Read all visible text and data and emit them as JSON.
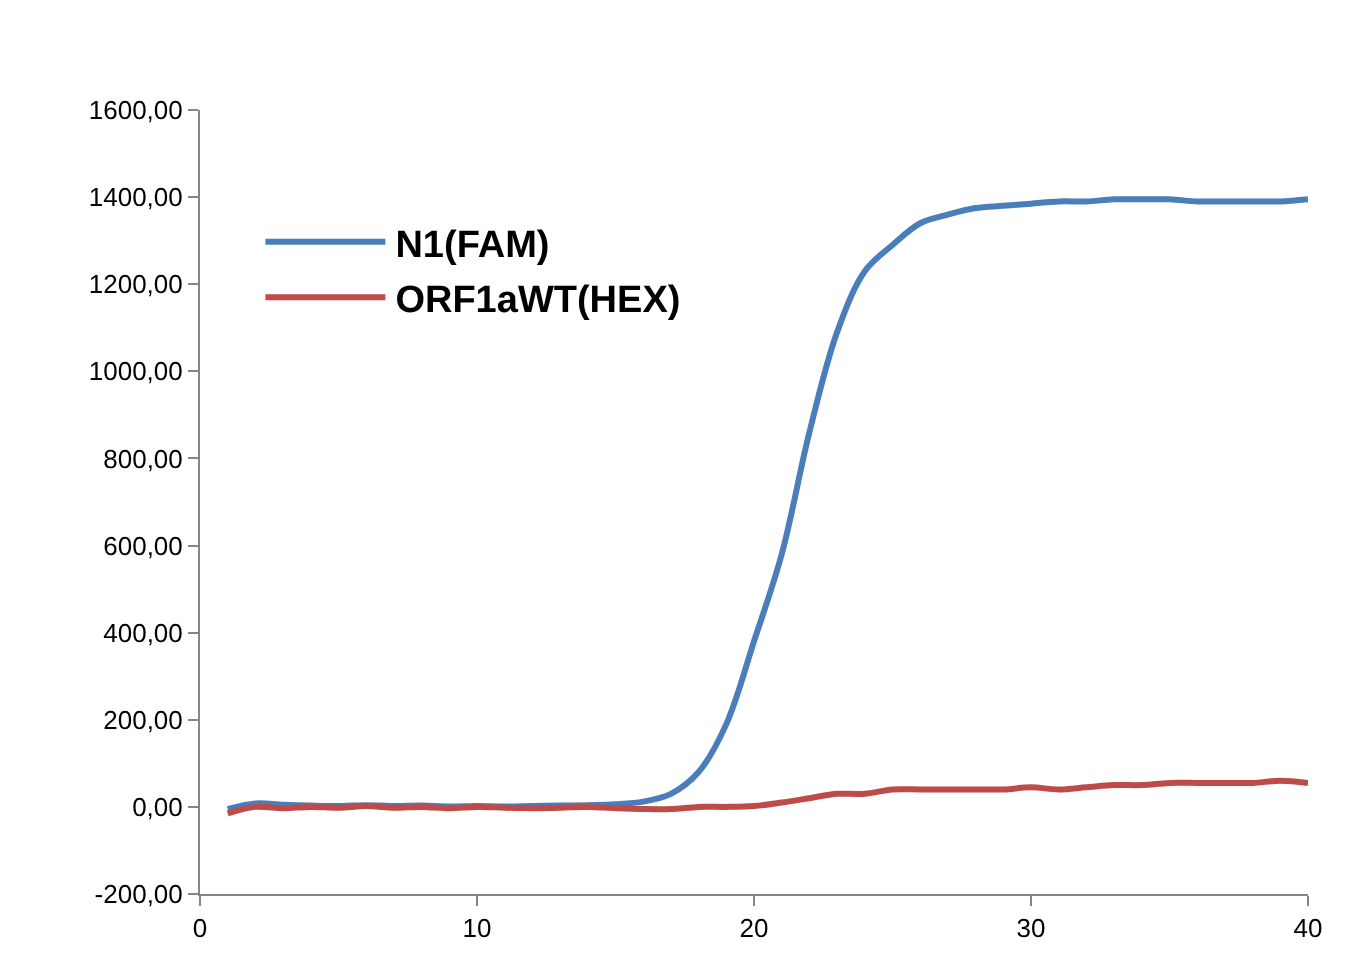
{
  "chart_data": {
    "type": "line",
    "x": [
      1,
      2,
      3,
      4,
      5,
      6,
      7,
      8,
      9,
      10,
      11,
      12,
      13,
      14,
      15,
      16,
      17,
      18,
      19,
      20,
      21,
      22,
      23,
      24,
      25,
      26,
      27,
      28,
      29,
      30,
      31,
      32,
      33,
      34,
      35,
      36,
      37,
      38,
      39,
      40
    ],
    "series": [
      {
        "name": "N1(FAM)",
        "color": "#4a7ebb",
        "values": [
          -5,
          8,
          5,
          3,
          2,
          4,
          2,
          3,
          1,
          2,
          1,
          2,
          3,
          4,
          6,
          12,
          30,
          80,
          190,
          380,
          580,
          860,
          1090,
          1230,
          1290,
          1340,
          1360,
          1375,
          1380,
          1385,
          1390,
          1390,
          1395,
          1395,
          1395,
          1390,
          1390,
          1390,
          1390,
          1395
        ]
      },
      {
        "name": "ORF1aWT(HEX)",
        "color": "#be4b48",
        "values": [
          -15,
          0,
          -3,
          0,
          -2,
          2,
          -2,
          0,
          -3,
          0,
          -2,
          -3,
          -2,
          0,
          -3,
          -5,
          -5,
          0,
          0,
          2,
          10,
          20,
          30,
          30,
          40,
          40,
          40,
          40,
          40,
          45,
          40,
          45,
          50,
          50,
          55,
          55,
          55,
          55,
          60,
          55
        ]
      }
    ],
    "xlim": [
      0,
      40
    ],
    "xticks": [
      0,
      10,
      20,
      30,
      40
    ],
    "ylim": [
      -200,
      1600
    ],
    "yticks": [
      {
        "value": -200,
        "label": "-200,00"
      },
      {
        "value": 0,
        "label": "0,00"
      },
      {
        "value": 200,
        "label": "200,00"
      },
      {
        "value": 400,
        "label": "400,00"
      },
      {
        "value": 600,
        "label": "600,00"
      },
      {
        "value": 800,
        "label": "800,00"
      },
      {
        "value": 1000,
        "label": "1000,00"
      },
      {
        "value": 1200,
        "label": "1200,00"
      },
      {
        "value": 1400,
        "label": "1400,00"
      },
      {
        "value": 1600,
        "label": "1600,00"
      }
    ],
    "legend": "top left",
    "marker": "none",
    "line_style": "solid"
  }
}
